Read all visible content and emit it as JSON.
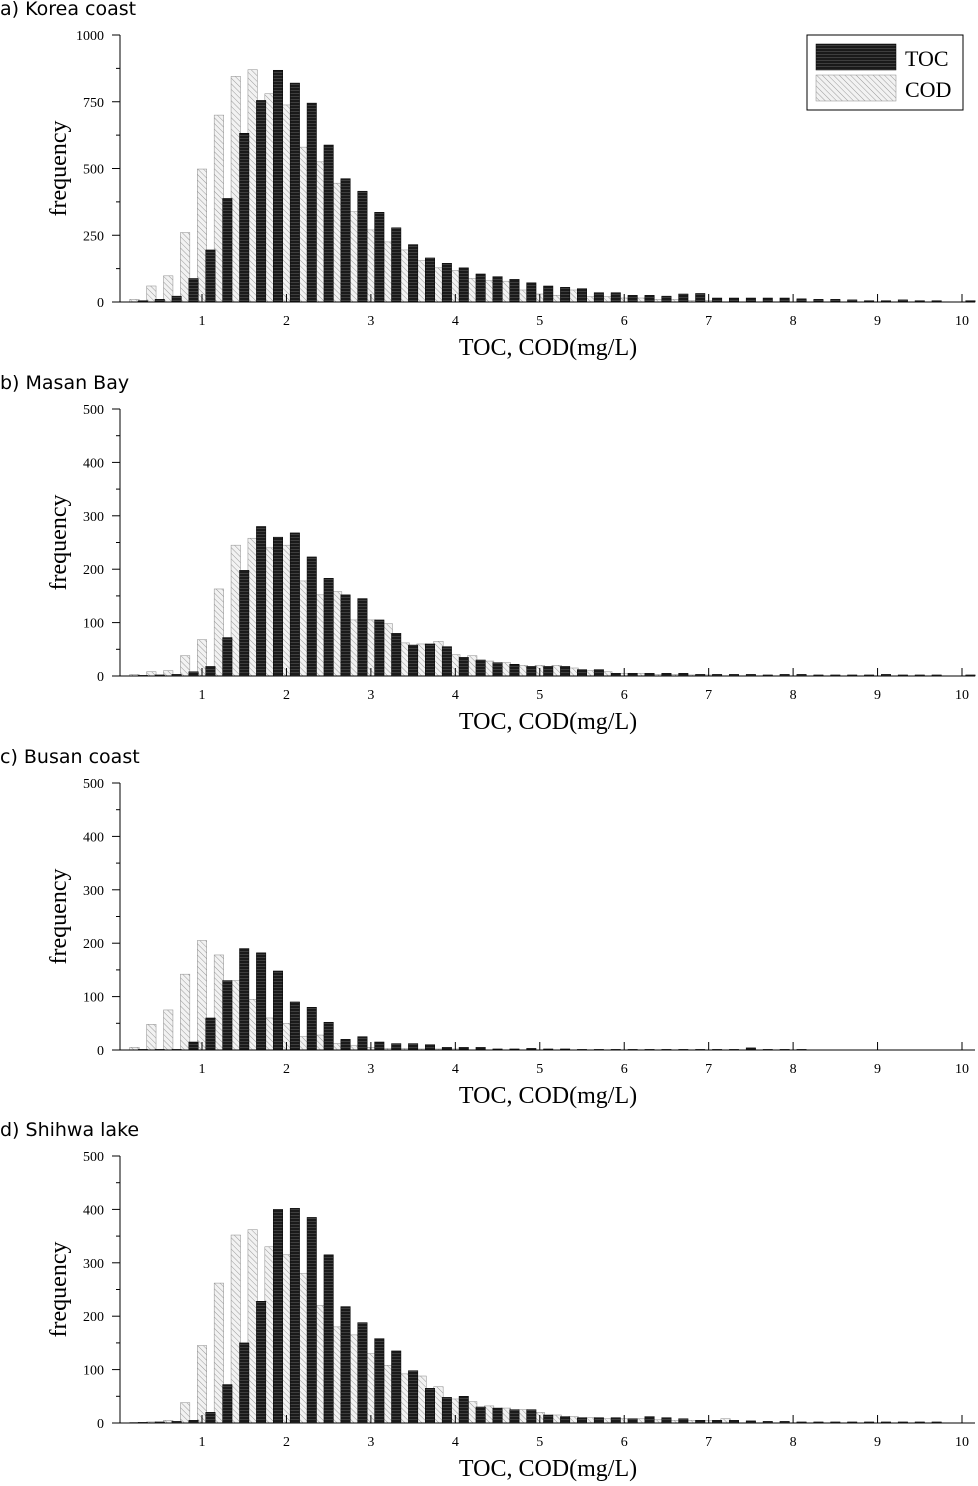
{
  "patterns": {
    "toc_fill": "#1a1a1a",
    "toc_fill_line": "#555555",
    "cod_fill": "#f2f2f2",
    "cod_hatch": "#9a9a9a",
    "axis_color": "#000000"
  },
  "legend": {
    "toc": "TOC",
    "cod": "COD"
  },
  "chart_data": [
    {
      "type": "bar",
      "panel_label": "a) Korea coast",
      "xlabel": "TOC, COD(mg/L)",
      "ylabel": "frequency",
      "xlim": [
        0,
        10
      ],
      "ylim": [
        0,
        1000
      ],
      "yticks": [
        0,
        250,
        500,
        750,
        1000
      ],
      "xticks": [
        1,
        2,
        3,
        4,
        5,
        6,
        7,
        8,
        9,
        10
      ],
      "legend": "top-right",
      "bin_width": 0.2,
      "series": [
        {
          "name": "TOC",
          "x": [
            0.3,
            0.5,
            0.7,
            0.9,
            1.1,
            1.3,
            1.5,
            1.7,
            1.9,
            2.1,
            2.3,
            2.5,
            2.7,
            2.9,
            3.1,
            3.3,
            3.5,
            3.7,
            3.9,
            4.1,
            4.3,
            4.5,
            4.7,
            4.9,
            5.1,
            5.3,
            5.5,
            5.7,
            5.9,
            6.1,
            6.3,
            6.5,
            6.7,
            6.9,
            7.1,
            7.3,
            7.5,
            7.7,
            7.9,
            8.1,
            8.3,
            8.5,
            8.7,
            8.9,
            9.1,
            9.3,
            9.5,
            9.7,
            10.1
          ],
          "values": [
            5,
            10,
            22,
            88,
            195,
            388,
            632,
            755,
            868,
            820,
            745,
            588,
            462,
            415,
            336,
            278,
            215,
            165,
            145,
            128,
            105,
            95,
            85,
            72,
            60,
            55,
            50,
            35,
            35,
            25,
            25,
            22,
            30,
            32,
            15,
            15,
            15,
            15,
            15,
            12,
            10,
            10,
            8,
            5,
            5,
            8,
            5,
            5,
            5
          ]
        },
        {
          "name": "COD",
          "x": [
            0.2,
            0.4,
            0.6,
            0.8,
            1.0,
            1.2,
            1.4,
            1.6,
            1.8,
            2.0,
            2.2,
            2.4,
            2.6,
            2.8,
            3.0,
            3.2,
            3.4,
            3.6,
            3.8,
            4.0,
            4.2,
            4.4,
            4.6,
            4.8,
            5.0,
            5.2,
            5.4,
            5.6,
            5.8,
            6.0,
            6.2,
            6.4,
            6.6,
            6.8,
            7.0
          ],
          "values": [
            10,
            60,
            98,
            260,
            498,
            700,
            845,
            870,
            780,
            738,
            580,
            525,
            445,
            338,
            270,
            225,
            195,
            155,
            128,
            118,
            88,
            80,
            78,
            45,
            30,
            25,
            45,
            20,
            20,
            15,
            15,
            10,
            10,
            5,
            5
          ]
        }
      ]
    },
    {
      "type": "bar",
      "panel_label": "b) Masan Bay",
      "xlabel": "TOC, COD(mg/L)",
      "ylabel": "frequency",
      "xlim": [
        0,
        10
      ],
      "ylim": [
        0,
        500
      ],
      "yticks": [
        0,
        100,
        200,
        300,
        400,
        500
      ],
      "xticks": [
        1,
        2,
        3,
        4,
        5,
        6,
        7,
        8,
        9,
        10
      ],
      "bin_width": 0.2,
      "series": [
        {
          "name": "TOC",
          "x": [
            0.3,
            0.5,
            0.7,
            0.9,
            1.1,
            1.3,
            1.5,
            1.7,
            1.9,
            2.1,
            2.3,
            2.5,
            2.7,
            2.9,
            3.1,
            3.3,
            3.5,
            3.7,
            3.9,
            4.1,
            4.3,
            4.5,
            4.7,
            4.9,
            5.1,
            5.3,
            5.5,
            5.7,
            5.9,
            6.1,
            6.3,
            6.5,
            6.7,
            6.9,
            7.1,
            7.3,
            7.5,
            7.7,
            7.9,
            8.1,
            8.3,
            8.5,
            8.7,
            8.9,
            9.1,
            9.3,
            9.5,
            9.7,
            10.1
          ],
          "values": [
            1,
            2,
            3,
            8,
            18,
            72,
            198,
            280,
            260,
            268,
            223,
            183,
            152,
            145,
            105,
            80,
            58,
            60,
            55,
            35,
            30,
            25,
            22,
            18,
            18,
            18,
            12,
            12,
            5,
            5,
            5,
            5,
            5,
            3,
            3,
            3,
            3,
            2,
            3,
            3,
            2,
            2,
            2,
            2,
            3,
            2,
            2,
            2,
            2
          ]
        },
        {
          "name": "COD",
          "x": [
            0.2,
            0.4,
            0.6,
            0.8,
            1.0,
            1.2,
            1.4,
            1.6,
            1.8,
            2.0,
            2.2,
            2.4,
            2.6,
            2.8,
            3.0,
            3.2,
            3.4,
            3.6,
            3.8,
            4.0,
            4.2,
            4.4,
            4.6,
            4.8,
            5.0,
            5.2,
            5.4,
            5.6,
            5.8,
            6.0,
            6.2,
            6.4,
            6.6,
            6.8,
            7.0
          ],
          "values": [
            3,
            8,
            10,
            38,
            68,
            163,
            245,
            258,
            240,
            245,
            178,
            152,
            158,
            105,
            105,
            98,
            62,
            60,
            65,
            40,
            38,
            28,
            25,
            20,
            20,
            20,
            15,
            10,
            8,
            5,
            5,
            3,
            3,
            2,
            2
          ]
        }
      ]
    },
    {
      "type": "bar",
      "panel_label": "c) Busan coast",
      "xlabel": "TOC, COD(mg/L)",
      "ylabel": "frequency",
      "xlim": [
        0,
        10
      ],
      "ylim": [
        0,
        500
      ],
      "yticks": [
        0,
        100,
        200,
        300,
        400,
        500
      ],
      "xticks": [
        1,
        2,
        3,
        4,
        5,
        6,
        7,
        8,
        9,
        10
      ],
      "bin_width": 0.2,
      "series": [
        {
          "name": "TOC",
          "x": [
            0.3,
            0.5,
            0.7,
            0.9,
            1.1,
            1.3,
            1.5,
            1.7,
            1.9,
            2.1,
            2.3,
            2.5,
            2.7,
            2.9,
            3.1,
            3.3,
            3.5,
            3.7,
            3.9,
            4.1,
            4.3,
            4.5,
            4.7,
            4.9,
            5.1,
            5.3,
            5.5,
            5.7,
            5.9,
            6.1,
            6.3,
            6.5,
            6.7,
            6.9,
            7.1,
            7.3,
            7.5,
            7.7,
            7.9,
            8.1
          ],
          "values": [
            0,
            0,
            0,
            15,
            60,
            130,
            190,
            182,
            148,
            90,
            80,
            52,
            20,
            25,
            15,
            12,
            12,
            10,
            5,
            5,
            5,
            2,
            2,
            3,
            2,
            2,
            1,
            1,
            1,
            1,
            1,
            1,
            1,
            1,
            1,
            1,
            4,
            1,
            1,
            1
          ]
        },
        {
          "name": "COD",
          "x": [
            0.2,
            0.4,
            0.6,
            0.8,
            1.0,
            1.2,
            1.4,
            1.6,
            1.8,
            2.0,
            2.2,
            2.4,
            2.6,
            2.8,
            3.0,
            3.2,
            3.4,
            3.6,
            3.8,
            4.0
          ],
          "values": [
            5,
            48,
            75,
            142,
            205,
            178,
            130,
            95,
            60,
            50,
            25,
            28,
            12,
            8,
            5,
            3,
            3,
            2,
            2,
            2
          ]
        }
      ]
    },
    {
      "type": "bar",
      "panel_label": "d) Shihwa lake",
      "xlabel": "TOC, COD(mg/L)",
      "ylabel": "frequency",
      "xlim": [
        0,
        10
      ],
      "ylim": [
        0,
        500
      ],
      "yticks": [
        0,
        100,
        200,
        300,
        400,
        500
      ],
      "xticks": [
        1,
        2,
        3,
        4,
        5,
        6,
        7,
        8,
        9,
        10
      ],
      "bin_width": 0.2,
      "series": [
        {
          "name": "TOC",
          "x": [
            0.3,
            0.5,
            0.7,
            0.9,
            1.1,
            1.3,
            1.5,
            1.7,
            1.9,
            2.1,
            2.3,
            2.5,
            2.7,
            2.9,
            3.1,
            3.3,
            3.5,
            3.7,
            3.9,
            4.1,
            4.3,
            4.5,
            4.7,
            4.9,
            5.1,
            5.3,
            5.5,
            5.7,
            5.9,
            6.1,
            6.3,
            6.5,
            6.7,
            6.9,
            7.1,
            7.3,
            7.5,
            7.7,
            7.9,
            8.1,
            8.3,
            8.5,
            8.7,
            8.9,
            9.1,
            9.3,
            9.5,
            9.7
          ],
          "values": [
            1,
            2,
            3,
            5,
            20,
            72,
            150,
            228,
            400,
            402,
            385,
            315,
            218,
            188,
            158,
            135,
            98,
            65,
            48,
            50,
            30,
            28,
            25,
            25,
            15,
            12,
            10,
            10,
            10,
            8,
            12,
            10,
            8,
            5,
            5,
            5,
            4,
            3,
            3,
            2,
            2,
            2,
            2,
            2,
            2,
            2,
            2,
            2
          ]
        },
        {
          "name": "COD",
          "x": [
            0.2,
            0.4,
            0.6,
            0.8,
            1.0,
            1.2,
            1.4,
            1.6,
            1.8,
            2.0,
            2.2,
            2.4,
            2.6,
            2.8,
            3.0,
            3.2,
            3.4,
            3.6,
            3.8,
            4.0,
            4.2,
            4.4,
            4.6,
            4.8,
            5.0,
            5.2,
            5.4,
            5.6,
            5.8,
            6.0,
            6.2,
            6.4,
            6.6,
            6.8,
            7.0,
            7.2
          ],
          "values": [
            1,
            2,
            5,
            38,
            145,
            262,
            352,
            362,
            330,
            315,
            280,
            220,
            180,
            165,
            130,
            108,
            92,
            88,
            68,
            45,
            40,
            32,
            28,
            25,
            20,
            15,
            12,
            10,
            8,
            8,
            8,
            6,
            5,
            5,
            5,
            8
          ]
        }
      ]
    }
  ]
}
